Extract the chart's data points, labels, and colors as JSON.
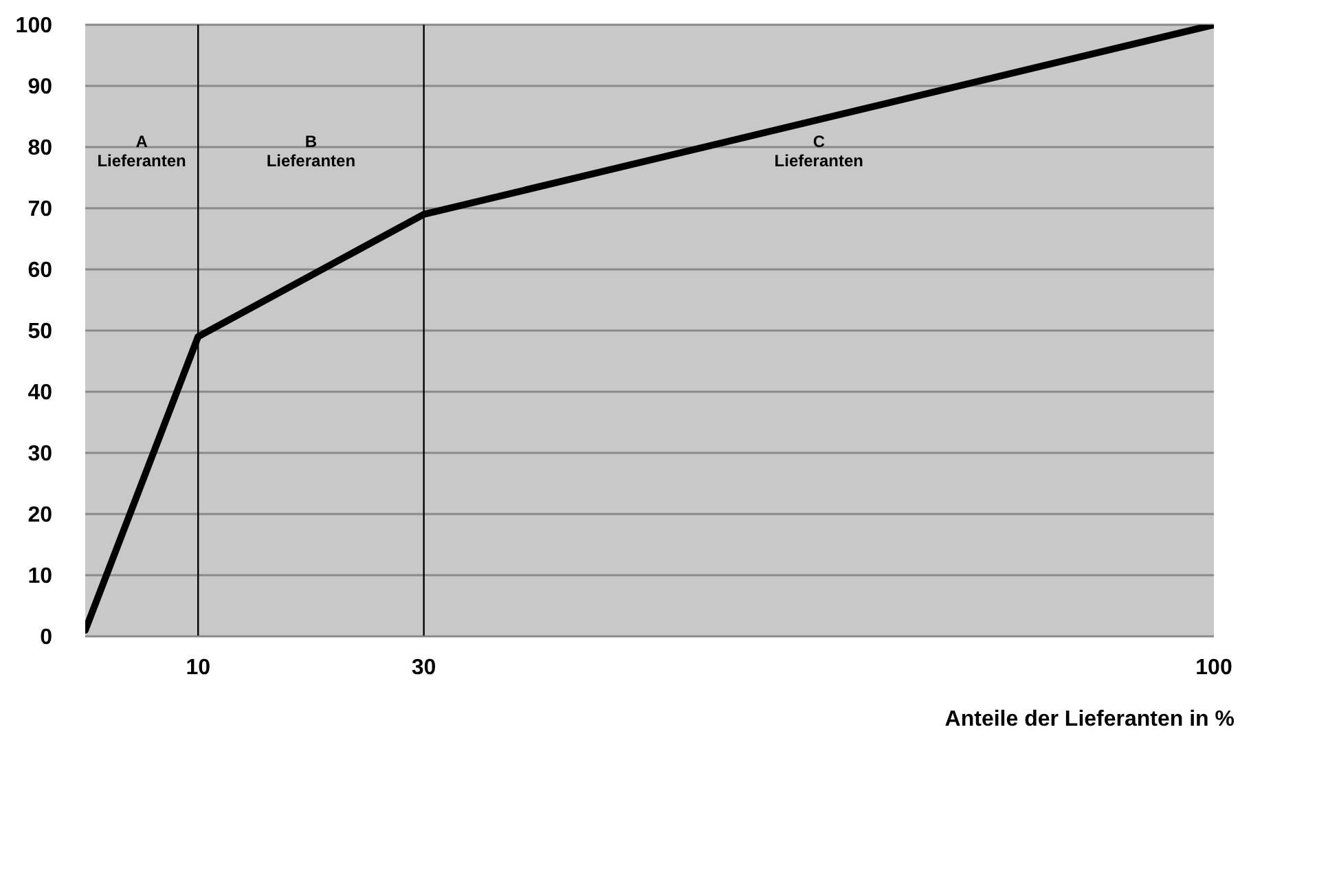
{
  "chart_data": {
    "type": "line",
    "xlabel": "Anteile der Lieferanten in %",
    "x": [
      0,
      10,
      30,
      100
    ],
    "series": [
      {
        "color": "#000000",
        "values": [
          1,
          49,
          69,
          100
        ]
      }
    ],
    "xlim": [
      0,
      100
    ],
    "xticks": [
      10,
      30,
      100
    ],
    "ylim": [
      0,
      100
    ],
    "yticks": [
      0,
      10,
      20,
      30,
      40,
      50,
      60,
      70,
      80,
      90,
      100
    ],
    "grid": "y",
    "line_style": "solid",
    "ref_lines": [
      {
        "axis": "x",
        "value": 10,
        "color": "#000000"
      },
      {
        "axis": "x",
        "value": 30,
        "color": "#000000"
      }
    ],
    "annotations": [
      "A\nLieferanten",
      "B\nLieferanten",
      "C\nLieferanten"
    ]
  }
}
